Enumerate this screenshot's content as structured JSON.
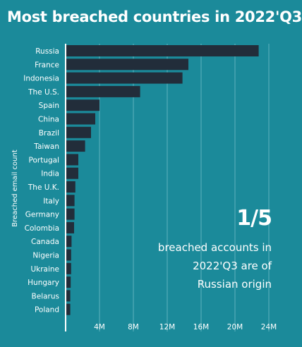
{
  "title": "Most breached countries in 2022'Q3",
  "callout": {
    "value": "1/5",
    "text": "breached accounts in 2022'Q3 are of Russian origin"
  },
  "colors": {
    "background": "#1b8a9a",
    "bar": "#222d3a",
    "grid": "#5fb3bf",
    "axis": "#ffffff"
  },
  "chart_data": {
    "type": "bar",
    "orientation": "horizontal",
    "title": "Most breached countries in 2022'Q3",
    "ylabel": "Breached email count",
    "xlabel": "",
    "categories": [
      "Russia",
      "France",
      "Indonesia",
      "The U.S.",
      "Spain",
      "China",
      "Brazil",
      "Taiwan",
      "Portugal",
      "India",
      "The U.K.",
      "Italy",
      "Germany",
      "Colombia",
      "Canada",
      "Nigeria",
      "Ukraine",
      "Hungary",
      "Belarus",
      "Poland"
    ],
    "values": [
      22800000,
      14500000,
      13800000,
      8800000,
      4000000,
      3500000,
      3000000,
      2300000,
      1500000,
      1500000,
      1150000,
      1050000,
      1050000,
      1000000,
      700000,
      650000,
      650000,
      600000,
      550000,
      550000
    ],
    "xlim": [
      0,
      25500000
    ],
    "xticks": [
      4000000,
      8000000,
      12000000,
      16000000,
      20000000,
      24000000
    ],
    "xtick_labels": [
      "4M",
      "8M",
      "12M",
      "16M",
      "20M",
      "24M"
    ],
    "grid": true
  }
}
